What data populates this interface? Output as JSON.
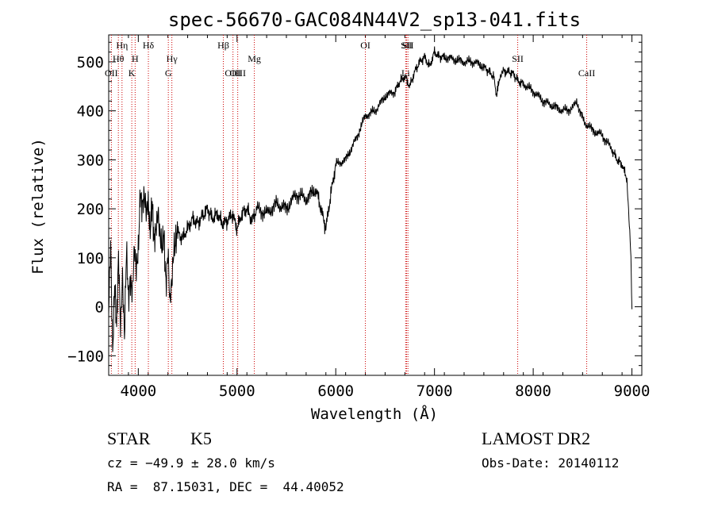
{
  "chart_data": {
    "type": "line",
    "title": "spec-56670-GAC084N44V2_sp13-041.fits",
    "xlabel": "Wavelength (Å)",
    "ylabel": "Flux (relative)",
    "xlim": [
      3700,
      9100
    ],
    "ylim": [
      -140,
      555
    ],
    "x_ticks": [
      4000,
      5000,
      6000,
      7000,
      8000,
      9000
    ],
    "y_ticks": [
      -100,
      0,
      100,
      200,
      300,
      400,
      500
    ],
    "x_tick_labels": [
      "4000",
      "5000",
      "6000",
      "7000",
      "8000",
      "9000"
    ],
    "y_tick_labels": [
      "−100",
      "0",
      "100",
      "200",
      "300",
      "400",
      "500"
    ],
    "grid": false,
    "series": [
      {
        "color": "#000000",
        "x": [
          3700,
          3720,
          3740,
          3760,
          3780,
          3800,
          3820,
          3840,
          3860,
          3880,
          3900,
          3920,
          3940,
          3960,
          3980,
          4000,
          4020,
          4040,
          4060,
          4080,
          4100,
          4120,
          4140,
          4160,
          4180,
          4200,
          4220,
          4240,
          4260,
          4280,
          4300,
          4320,
          4340,
          4360,
          4380,
          4400,
          4450,
          4500,
          4550,
          4600,
          4650,
          4700,
          4750,
          4800,
          4850,
          4900,
          4950,
          5000,
          5050,
          5100,
          5150,
          5200,
          5300,
          5400,
          5500,
          5600,
          5700,
          5800,
          5850,
          5900,
          5950,
          6000,
          6100,
          6200,
          6300,
          6400,
          6500,
          6600,
          6650,
          6700,
          6750,
          6800,
          6850,
          6900,
          6950,
          7000,
          7050,
          7100,
          7200,
          7300,
          7400,
          7500,
          7550,
          7600,
          7630,
          7660,
          7700,
          7750,
          7800,
          7850,
          7900,
          8000,
          8100,
          8200,
          8300,
          8400,
          8440,
          8480,
          8520,
          8560,
          8600,
          8700,
          8800,
          8850,
          8900,
          8950,
          8990,
          9000
        ],
        "y": [
          -20,
          120,
          -80,
          60,
          -50,
          90,
          -40,
          80,
          -60,
          100,
          10,
          70,
          40,
          110,
          60,
          120,
          250,
          200,
          210,
          190,
          230,
          160,
          200,
          120,
          170,
          210,
          140,
          100,
          150,
          60,
          120,
          -10,
          40,
          130,
          150,
          150,
          140,
          160,
          180,
          170,
          185,
          200,
          180,
          190,
          170,
          175,
          190,
          160,
          190,
          200,
          175,
          200,
          190,
          210,
          200,
          230,
          220,
          240,
          200,
          160,
          230,
          290,
          300,
          340,
          390,
          400,
          430,
          440,
          460,
          470,
          450,
          480,
          500,
          510,
          490,
          520,
          510,
          510,
          505,
          500,
          500,
          490,
          480,
          470,
          430,
          470,
          480,
          480,
          475,
          460,
          455,
          440,
          420,
          410,
          400,
          405,
          420,
          395,
          375,
          370,
          360,
          350,
          320,
          300,
          290,
          260,
          100,
          -5
        ]
      }
    ],
    "spectral_lines": [
      {
        "label": "Hη",
        "wavelength": 3835,
        "row": 1
      },
      {
        "label": "Hθ",
        "wavelength": 3798,
        "row": 2
      },
      {
        "label": "H",
        "wavelength": 3968,
        "row": 2
      },
      {
        "label": "OII",
        "wavelength": 3727,
        "row": 3
      },
      {
        "label": "K",
        "wavelength": 3934,
        "row": 3
      },
      {
        "label": "Hδ",
        "wavelength": 4102,
        "row": 1
      },
      {
        "label": "Hγ",
        "wavelength": 4340,
        "row": 2
      },
      {
        "label": "G",
        "wavelength": 4304,
        "row": 3
      },
      {
        "label": "Hβ",
        "wavelength": 4861,
        "row": 1
      },
      {
        "label": "OIII",
        "wavelength": 4959,
        "row": 3
      },
      {
        "label": "OIII",
        "wavelength": 5007,
        "row": 3
      },
      {
        "label": "Mg",
        "wavelength": 5175,
        "row": 2
      },
      {
        "label": "OI",
        "wavelength": 6300,
        "row": 1
      },
      {
        "label": "SII",
        "wavelength": 6717,
        "row": 1
      },
      {
        "label": "SII",
        "wavelength": 6731,
        "row": 1
      },
      {
        "label": "Li",
        "wavelength": 6708,
        "row": 3
      },
      {
        "label": "SII",
        "wavelength": 7843,
        "row": 2
      },
      {
        "label": "CaII",
        "wavelength": 8542,
        "row": 3
      }
    ]
  },
  "info": {
    "object_class": "STAR",
    "subclass": "K5",
    "survey": "LAMOST DR2",
    "cz": "cz = −49.9 ± 28.0 km/s",
    "obs_date": "Obs-Date: 20140112",
    "coords": "RA =  87.15031, DEC =  44.40052"
  }
}
